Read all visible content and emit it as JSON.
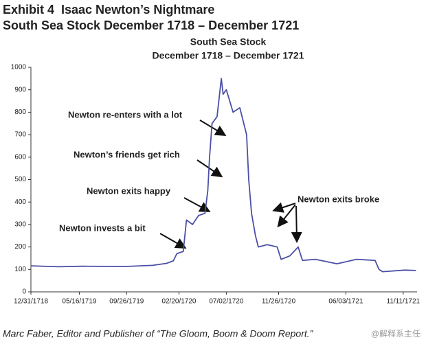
{
  "chart_data": {
    "type": "line",
    "heading": [
      "Exhibit 4  Isaac Newton’s Nightmare",
      "South Sea Stock December 1718 – December 1721"
    ],
    "title": "South Sea Stock",
    "subtitle": "December 1718 – December 1721",
    "x": [
      "1718-12-31",
      "1719-03-18",
      "1719-05-26",
      "1719-09-23",
      "1719-12-08",
      "1720-01-16",
      "1720-02-04",
      "1720-02-14",
      "1720-03-03",
      "1720-03-12",
      "1720-03-29",
      "1720-04-15",
      "1720-05-03",
      "1720-05-11",
      "1720-05-16",
      "1720-05-23",
      "1720-06-06",
      "1720-06-18",
      "1720-06-23",
      "1720-07-02",
      "1720-07-21",
      "1720-08-09",
      "1720-08-28",
      "1720-09-03",
      "1720-09-11",
      "1720-09-22",
      "1720-09-30",
      "1720-10-25",
      "1720-11-22",
      "1720-12-03",
      "1720-12-27",
      "1721-01-20",
      "1721-02-01",
      "1721-03-09",
      "1721-05-09",
      "1721-07-03",
      "1721-08-24",
      "1721-09-04",
      "1721-09-14",
      "1721-11-16",
      "1721-12-17"
    ],
    "values": [
      116,
      112,
      114,
      113,
      118,
      127,
      138,
      170,
      180,
      320,
      300,
      340,
      350,
      450,
      600,
      750,
      780,
      950,
      880,
      900,
      800,
      820,
      700,
      500,
      350,
      250,
      200,
      210,
      200,
      145,
      160,
      200,
      140,
      145,
      125,
      145,
      140,
      100,
      90,
      97,
      95
    ],
    "color": "#4b4fa6",
    "xlim": [
      "1718-12-31",
      "1721-12-20"
    ],
    "xticks": [
      {
        "value": "1718-12-31",
        "label": "12/31/1718"
      },
      {
        "value": "1719-05-16",
        "label": "05/16/1719"
      },
      {
        "value": "1719-09-26",
        "label": "09/26/1719"
      },
      {
        "value": "1720-02-20",
        "label": "02/20/1720"
      },
      {
        "value": "1720-07-02",
        "label": "07/02/1720"
      },
      {
        "value": "1720-11-26",
        "label": "11/26/1720"
      },
      {
        "value": "1721-06-03",
        "label": "06/03/1721"
      },
      {
        "value": "1721-11-11",
        "label": "11/11/1721"
      }
    ],
    "ylim": [
      0,
      1000
    ],
    "yticks": [
      0,
      100,
      200,
      300,
      400,
      500,
      600,
      700,
      800,
      900,
      1000
    ],
    "annotations": [
      "Newton invests a bit",
      "Newton exits happy",
      "Newton’s friends get rich",
      "Newton re-enters with a lot",
      "Newton exits broke"
    ],
    "source": "Marc Faber, Editor and Publisher of “The Gloom, Boom & Doom Report.”",
    "watermark": "@解释系主任"
  }
}
